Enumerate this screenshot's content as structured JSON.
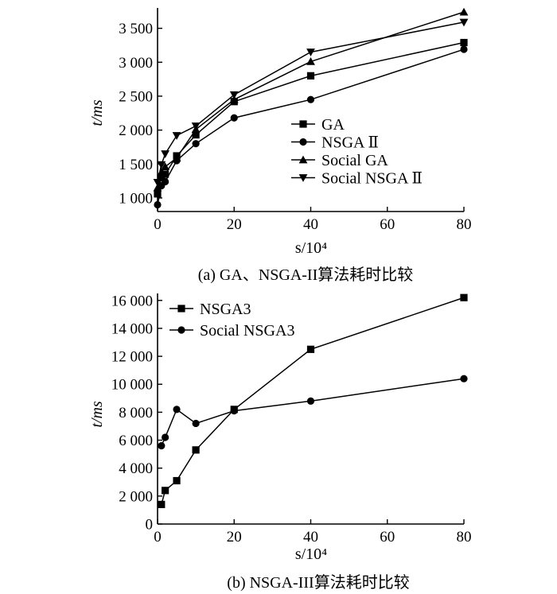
{
  "chart_data": [
    {
      "type": "line",
      "caption": "(a) GA、NSGA-II算法耗时比较",
      "xlabel": "s/10⁴",
      "ylabel": "t/ms",
      "x": [
        0,
        1,
        2,
        5,
        10,
        20,
        40,
        80
      ],
      "xlim": [
        0,
        80
      ],
      "ylim": [
        800,
        3800
      ],
      "x_ticks": [
        "0",
        "20",
        "40",
        "60",
        "80"
      ],
      "y_ticks": [
        "1 000",
        "1 500",
        "2 000",
        "2 500",
        "3 000",
        "3 500"
      ],
      "grid": false,
      "legend_position": "right",
      "series": [
        {
          "name": "GA",
          "marker": "square",
          "values": [
            1060,
            1300,
            1350,
            1620,
            1930,
            2420,
            2800,
            3290
          ]
        },
        {
          "name": "NSGA Ⅱ",
          "marker": "circle",
          "values": [
            900,
            1180,
            1240,
            1550,
            1800,
            2180,
            2450,
            3190
          ]
        },
        {
          "name": "Social GA",
          "marker": "triangle-up",
          "values": [
            1150,
            1380,
            1460,
            1590,
            2010,
            2450,
            3010,
            3740
          ]
        },
        {
          "name": "Social NSGA Ⅱ",
          "marker": "triangle-down",
          "values": [
            1230,
            1490,
            1650,
            1920,
            2060,
            2520,
            3150,
            3590
          ]
        }
      ]
    },
    {
      "type": "line",
      "caption": "(b) NSGA-III算法耗时比较",
      "xlabel": "s/10⁴",
      "ylabel": "t/ms",
      "x": [
        0,
        1,
        2,
        5,
        10,
        20,
        40,
        80
      ],
      "xlim": [
        0,
        80
      ],
      "ylim": [
        0,
        16500
      ],
      "x_ticks": [
        "0",
        "20",
        "40",
        "60",
        "80"
      ],
      "y_ticks": [
        "0",
        "2 000",
        "4 000",
        "6 000",
        "8 000",
        "10 000",
        "12 000",
        "14 000",
        "16 000"
      ],
      "grid": false,
      "legend_position": "top-left",
      "series": [
        {
          "name": "NSGA3",
          "marker": "square",
          "values": [
            null,
            1400,
            2400,
            3100,
            5300,
            8200,
            12500,
            16200
          ]
        },
        {
          "name": "Social NSGA3",
          "marker": "circle",
          "values": [
            null,
            5600,
            6200,
            8200,
            7200,
            8100,
            8800,
            10400
          ]
        }
      ]
    }
  ]
}
